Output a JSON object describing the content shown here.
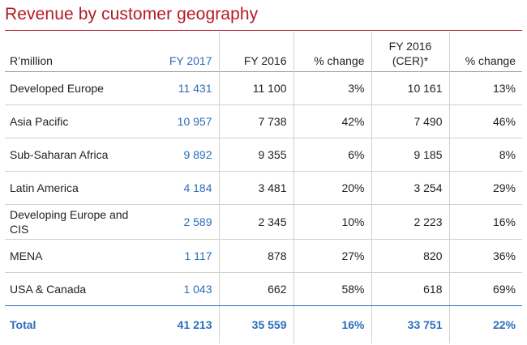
{
  "title": "Revenue by customer geography",
  "headers": {
    "label": "R’million",
    "fy2017": "FY 2017",
    "fy2016": "FY 2016",
    "pct1": "% change",
    "cer_line1": "FY 2016",
    "cer_line2": "(CER)*",
    "pct2": "% change"
  },
  "rows": [
    {
      "region_line1": "Developed Europe",
      "region_line2": "",
      "fy2017": "11 431",
      "fy2016": "11 100",
      "pct1": "3%",
      "cer": "10 161",
      "pct2": "13%"
    },
    {
      "region_line1": "Asia Pacific",
      "region_line2": "",
      "fy2017": "10 957",
      "fy2016": "7 738",
      "pct1": "42%",
      "cer": "7 490",
      "pct2": "46%"
    },
    {
      "region_line1": "Sub-Saharan Africa",
      "region_line2": "",
      "fy2017": "9 892",
      "fy2016": "9 355",
      "pct1": "6%",
      "cer": "9 185",
      "pct2": "8%"
    },
    {
      "region_line1": "Latin America",
      "region_line2": "",
      "fy2017": "4 184",
      "fy2016": "3 481",
      "pct1": "20%",
      "cer": "3 254",
      "pct2": "29%"
    },
    {
      "region_line1": "Developing Europe and",
      "region_line2": "CIS",
      "fy2017": "2 589",
      "fy2016": "2 345",
      "pct1": "10%",
      "cer": "2 223",
      "pct2": "16%"
    },
    {
      "region_line1": "MENA",
      "region_line2": "",
      "fy2017": "1 117",
      "fy2016": "878",
      "pct1": "27%",
      "cer": "820",
      "pct2": "36%"
    },
    {
      "region_line1": "USA & Canada",
      "region_line2": "",
      "fy2017": "1 043",
      "fy2016": "662",
      "pct1": "58%",
      "cer": "618",
      "pct2": "69%"
    }
  ],
  "total": {
    "label": "Total",
    "fy2017": "41 213",
    "fy2016": "35 559",
    "pct1": "16%",
    "cer": "33 751",
    "pct2": "22%"
  },
  "colors": {
    "title": "#b31b24",
    "accent": "#2a6ebb"
  }
}
